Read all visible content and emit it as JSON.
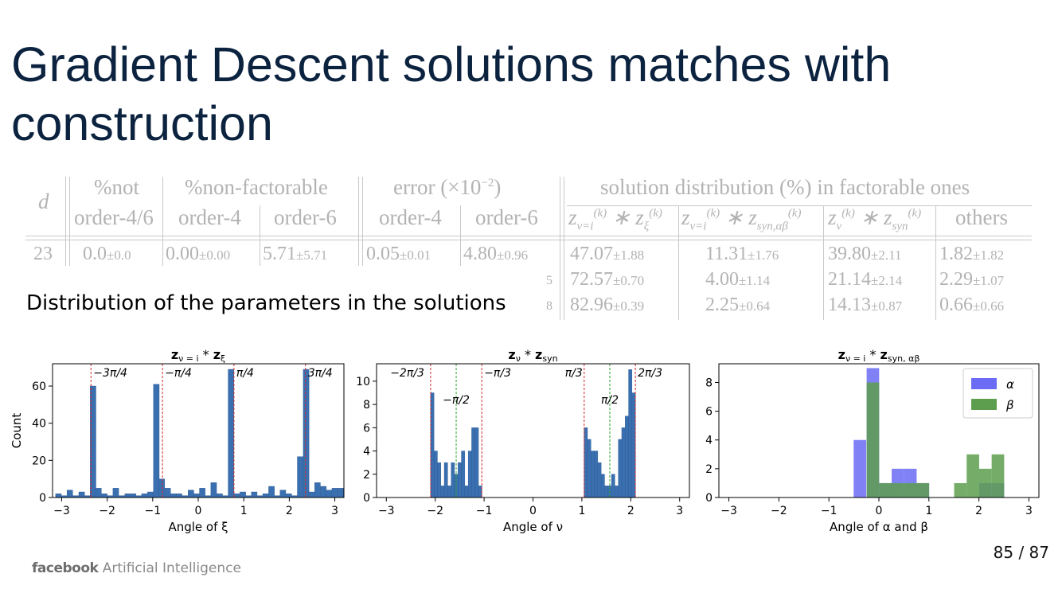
{
  "slide": {
    "title_line1": "Gradient Descent solutions matches with",
    "title_line2": "construction",
    "caption": "Distribution of the parameters in the solutions",
    "page": "85 / 87",
    "logo_brand": "facebook",
    "logo_text": "Artificial Intelligence"
  },
  "table": {
    "col_d": "d",
    "group_not": "%not",
    "group_nonfact": "%non-factorable",
    "group_error": "error (×10",
    "group_error_exp": "−2",
    "group_error_close": ")",
    "group_dist": "solution distribution (%) in factorable ones",
    "sub_order46": "order-4/6",
    "sub_order4_a": "order-4",
    "sub_order6_a": "order-6",
    "sub_order4_b": "order-4",
    "sub_order6_b": "order-6",
    "sub_others": "others",
    "rows": [
      {
        "label": "23",
        "not_v": "0.0",
        "not_e": "±0.0",
        "nf4_v": "0.00",
        "nf4_e": "±0.00",
        "nf6_v": "5.71",
        "nf6_e": "±5.71",
        "er4_v": "0.05",
        "er4_e": "±0.01",
        "er6_v": "4.80",
        "er6_e": "±0.96",
        "d1_v": "47.07",
        "d1_e": "±1.88",
        "d2_v": "11.31",
        "d2_e": "±1.76",
        "d3_v": "39.80",
        "d3_e": "±2.11",
        "d4_v": "1.82",
        "d4_e": "±1.82"
      },
      {
        "label": "5",
        "d1_v": "72.57",
        "d1_e": "±0.70",
        "d2_v": "4.00",
        "d2_e": "±1.14",
        "d3_v": "21.14",
        "d3_e": "±2.14",
        "d4_v": "2.29",
        "d4_e": "±1.07"
      },
      {
        "label": "8",
        "d1_v": "82.96",
        "d1_e": "±0.39",
        "d2_v": "2.25",
        "d2_e": "±0.64",
        "d3_v": "14.13",
        "d3_e": "±0.87",
        "d4_v": "0.66",
        "d4_e": "±0.66"
      }
    ]
  },
  "chart_data": [
    {
      "type": "bar",
      "title": "z_{ν = i} * z_ξ",
      "xlabel": "Angle of ξ",
      "ylabel": "Count",
      "xlim": [
        -3.2,
        3.2
      ],
      "ylim": [
        0,
        72
      ],
      "xticks": [
        -3,
        -2,
        -1,
        0,
        1,
        2,
        3
      ],
      "yticks": [
        0,
        20,
        40,
        60
      ],
      "bin_width": 0.126,
      "color": "#3a6fb0",
      "x": [
        -3.07,
        -2.94,
        -2.82,
        -2.69,
        -2.56,
        -2.44,
        -2.31,
        -2.19,
        -2.06,
        -1.93,
        -1.81,
        -1.68,
        -1.55,
        -1.43,
        -1.3,
        -1.18,
        -1.05,
        -0.92,
        -0.8,
        -0.67,
        -0.54,
        -0.42,
        -0.29,
        -0.16,
        -0.04,
        0.09,
        0.22,
        0.34,
        0.47,
        0.6,
        0.72,
        0.85,
        0.98,
        1.1,
        1.23,
        1.36,
        1.48,
        1.61,
        1.74,
        1.86,
        1.99,
        2.11,
        2.24,
        2.37,
        2.49,
        2.62,
        2.75,
        2.87,
        3.0,
        3.13
      ],
      "values": [
        2,
        1,
        4,
        1,
        3,
        1,
        60,
        5,
        2,
        1,
        5,
        1,
        2,
        2,
        1,
        2,
        3,
        61,
        10,
        5,
        2,
        2,
        1,
        4,
        2,
        5,
        1,
        8,
        2,
        1,
        69,
        2,
        3,
        1,
        3,
        1,
        2,
        6,
        1,
        4,
        2,
        1,
        22,
        69,
        3,
        8,
        6,
        4,
        5,
        5
      ],
      "vlines": [
        {
          "x": -2.356,
          "label": "−3π/4"
        },
        {
          "x": -0.785,
          "label": "−π/4"
        },
        {
          "x": 0.785,
          "label": "π/4"
        },
        {
          "x": 2.356,
          "label": "3π/4"
        }
      ],
      "vline_color": "#d62728"
    },
    {
      "type": "bar",
      "title": "z_ν * z_syn",
      "xlabel": "Angle of ν",
      "ylabel": "",
      "xlim": [
        -3.2,
        3.2
      ],
      "ylim": [
        0,
        11.5
      ],
      "xticks": [
        -3,
        -2,
        -1,
        0,
        1,
        2,
        3
      ],
      "yticks": [
        0,
        2,
        4,
        6,
        8,
        10
      ],
      "bin_width": 0.07,
      "color": "#3a6fb0",
      "x": [
        -2.06,
        -1.99,
        -1.92,
        -1.85,
        -1.78,
        -1.71,
        -1.64,
        -1.57,
        -1.5,
        -1.43,
        -1.36,
        -1.29,
        -1.22,
        -1.15,
        -1.08,
        1.08,
        1.15,
        1.22,
        1.29,
        1.36,
        1.43,
        1.5,
        1.57,
        1.64,
        1.71,
        1.78,
        1.85,
        1.92,
        1.99,
        2.06
      ],
      "values": [
        9,
        4,
        3,
        1,
        3,
        1,
        3,
        2,
        3,
        4,
        1,
        4,
        6,
        6,
        1,
        6,
        5,
        4,
        4,
        3,
        2,
        1,
        1,
        2,
        1,
        5,
        6,
        7,
        11,
        9
      ],
      "vlines": [
        {
          "x": -2.094,
          "label": "−2π/3",
          "color": "#d62728"
        },
        {
          "x": -1.571,
          "label": "−π/2",
          "color": "#2ca02c"
        },
        {
          "x": -1.047,
          "label": "−π/3",
          "color": "#d62728"
        },
        {
          "x": 1.047,
          "label": "π/3",
          "color": "#d62728"
        },
        {
          "x": 1.571,
          "label": "π/2",
          "color": "#2ca02c"
        },
        {
          "x": 2.094,
          "label": "2π/3",
          "color": "#d62728"
        }
      ]
    },
    {
      "type": "bar",
      "title": "z_{ν = i} * z_{syn, αβ}",
      "xlabel": "Angle of α and β",
      "ylabel": "",
      "xlim": [
        -3.2,
        3.2
      ],
      "ylim": [
        0,
        9.3
      ],
      "xticks": [
        -3,
        -2,
        -1,
        0,
        1,
        2,
        3
      ],
      "yticks": [
        0,
        2,
        4,
        6,
        8
      ],
      "legend": "top-right",
      "series": [
        {
          "name": "α",
          "color": "#6b6bf5",
          "x": [
            -0.38,
            -0.12,
            0.13,
            0.38,
            0.63,
            0.88,
            1.88,
            2.13,
            2.38
          ],
          "values": [
            4,
            9,
            1,
            2,
            2,
            1,
            0,
            1,
            1
          ]
        },
        {
          "name": "β",
          "color": "#5d9e4e",
          "x": [
            -0.12,
            0.13,
            0.38,
            0.63,
            0.88,
            1.63,
            1.88,
            2.13,
            2.38
          ],
          "values": [
            8,
            1,
            1,
            1,
            1,
            1,
            3,
            2,
            3
          ]
        }
      ],
      "bar_width": 0.25
    }
  ]
}
